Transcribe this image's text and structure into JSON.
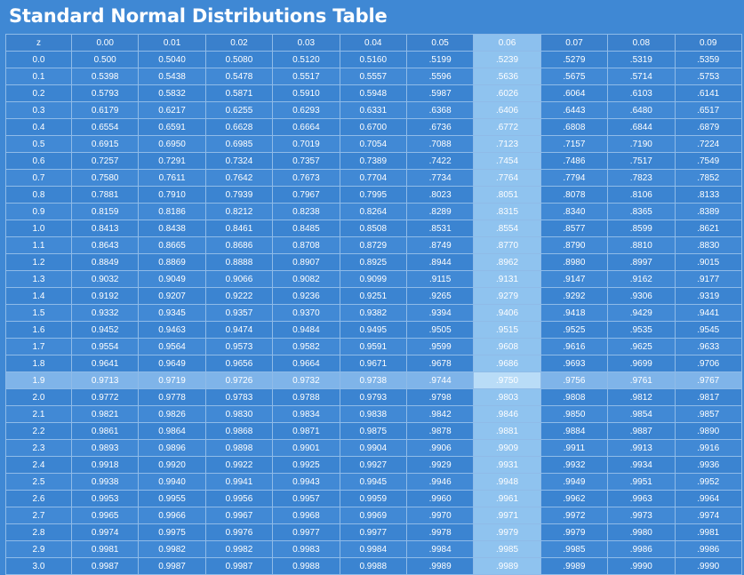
{
  "title": "Standard Normal Distributions Table",
  "highlight": {
    "row": "1.9",
    "column": "0.06"
  },
  "table": {
    "headers": [
      "z",
      "0.00",
      "0.01",
      "0.02",
      "0.03",
      "0.04",
      "0.05",
      "0.06",
      "0.07",
      "0.08",
      "0.09"
    ],
    "rows": [
      [
        "0.0",
        "0.500",
        "0.5040",
        "0.5080",
        "0.5120",
        "0.5160",
        ".5199",
        ".5239",
        ".5279",
        ".5319",
        ".5359"
      ],
      [
        "0.1",
        "0.5398",
        "0.5438",
        "0.5478",
        "0.5517",
        "0.5557",
        ".5596",
        ".5636",
        ".5675",
        ".5714",
        ".5753"
      ],
      [
        "0.2",
        "0.5793",
        "0.5832",
        "0.5871",
        "0.5910",
        "0.5948",
        ".5987",
        ".6026",
        ".6064",
        ".6103",
        ".6141"
      ],
      [
        "0.3",
        "0.6179",
        "0.6217",
        "0.6255",
        "0.6293",
        "0.6331",
        ".6368",
        ".6406",
        ".6443",
        ".6480",
        ".6517"
      ],
      [
        "0.4",
        "0.6554",
        "0.6591",
        "0.6628",
        "0.6664",
        "0.6700",
        ".6736",
        ".6772",
        ".6808",
        ".6844",
        ".6879"
      ],
      [
        "0.5",
        "0.6915",
        "0.6950",
        "0.6985",
        "0.7019",
        "0.7054",
        ".7088",
        ".7123",
        ".7157",
        ".7190",
        ".7224"
      ],
      [
        "0.6",
        "0.7257",
        "0.7291",
        "0.7324",
        "0.7357",
        "0.7389",
        ".7422",
        ".7454",
        ".7486",
        ".7517",
        ".7549"
      ],
      [
        "0.7",
        "0.7580",
        "0.7611",
        "0.7642",
        "0.7673",
        "0.7704",
        ".7734",
        ".7764",
        ".7794",
        ".7823",
        ".7852"
      ],
      [
        "0.8",
        "0.7881",
        "0.7910",
        "0.7939",
        "0.7967",
        "0.7995",
        ".8023",
        ".8051",
        ".8078",
        ".8106",
        ".8133"
      ],
      [
        "0.9",
        "0.8159",
        "0.8186",
        "0.8212",
        "0.8238",
        "0.8264",
        ".8289",
        ".8315",
        ".8340",
        ".8365",
        ".8389"
      ],
      [
        "1.0",
        "0.8413",
        "0.8438",
        "0.8461",
        "0.8485",
        "0.8508",
        ".8531",
        ".8554",
        ".8577",
        ".8599",
        ".8621"
      ],
      [
        "1.1",
        "0.8643",
        "0.8665",
        "0.8686",
        "0.8708",
        "0.8729",
        ".8749",
        ".8770",
        ".8790",
        ".8810",
        ".8830"
      ],
      [
        "1.2",
        "0.8849",
        "0.8869",
        "0.8888",
        "0.8907",
        "0.8925",
        ".8944",
        ".8962",
        ".8980",
        ".8997",
        ".9015"
      ],
      [
        "1.3",
        "0.9032",
        "0.9049",
        "0.9066",
        "0.9082",
        "0.9099",
        ".9115",
        ".9131",
        ".9147",
        ".9162",
        ".9177"
      ],
      [
        "1.4",
        "0.9192",
        "0.9207",
        "0.9222",
        "0.9236",
        "0.9251",
        ".9265",
        ".9279",
        ".9292",
        ".9306",
        ".9319"
      ],
      [
        "1.5",
        "0.9332",
        "0.9345",
        "0.9357",
        "0.9370",
        "0.9382",
        ".9394",
        ".9406",
        ".9418",
        ".9429",
        ".9441"
      ],
      [
        "1.6",
        "0.9452",
        "0.9463",
        "0.9474",
        "0.9484",
        "0.9495",
        ".9505",
        ".9515",
        ".9525",
        ".9535",
        ".9545"
      ],
      [
        "1.7",
        "0.9554",
        "0.9564",
        "0.9573",
        "0.9582",
        "0.9591",
        ".9599",
        ".9608",
        ".9616",
        ".9625",
        ".9633"
      ],
      [
        "1.8",
        "0.9641",
        "0.9649",
        "0.9656",
        "0.9664",
        "0.9671",
        ".9678",
        ".9686",
        ".9693",
        ".9699",
        ".9706"
      ],
      [
        "1.9",
        "0.9713",
        "0.9719",
        "0.9726",
        "0.9732",
        "0.9738",
        ".9744",
        ".9750",
        ".9756",
        ".9761",
        ".9767"
      ],
      [
        "2.0",
        "0.9772",
        "0.9778",
        "0.9783",
        "0.9788",
        "0.9793",
        ".9798",
        ".9803",
        ".9808",
        ".9812",
        ".9817"
      ],
      [
        "2.1",
        "0.9821",
        "0.9826",
        "0.9830",
        "0.9834",
        "0.9838",
        ".9842",
        ".9846",
        ".9850",
        ".9854",
        ".9857"
      ],
      [
        "2.2",
        "0.9861",
        "0.9864",
        "0.9868",
        "0.9871",
        "0.9875",
        ".9878",
        ".9881",
        ".9884",
        ".9887",
        ".9890"
      ],
      [
        "2.3",
        "0.9893",
        "0.9896",
        "0.9898",
        "0.9901",
        "0.9904",
        ".9906",
        ".9909",
        ".9911",
        ".9913",
        ".9916"
      ],
      [
        "2.4",
        "0.9918",
        "0.9920",
        "0.9922",
        "0.9925",
        "0.9927",
        ".9929",
        ".9931",
        ".9932",
        ".9934",
        ".9936"
      ],
      [
        "2.5",
        "0.9938",
        "0.9940",
        "0.9941",
        "0.9943",
        "0.9945",
        ".9946",
        ".9948",
        ".9949",
        ".9951",
        ".9952"
      ],
      [
        "2.6",
        "0.9953",
        "0.9955",
        "0.9956",
        "0.9957",
        "0.9959",
        ".9960",
        ".9961",
        ".9962",
        ".9963",
        ".9964"
      ],
      [
        "2.7",
        "0.9965",
        "0.9966",
        "0.9967",
        "0.9968",
        "0.9969",
        ".9970",
        ".9971",
        ".9972",
        ".9973",
        ".9974"
      ],
      [
        "2.8",
        "0.9974",
        "0.9975",
        "0.9976",
        "0.9977",
        "0.9977",
        ".9978",
        ".9979",
        ".9979",
        ".9980",
        ".9981"
      ],
      [
        "2.9",
        "0.9981",
        "0.9982",
        "0.9982",
        "0.9983",
        "0.9984",
        ".9984",
        ".9985",
        ".9985",
        ".9986",
        ".9986"
      ],
      [
        "3.0",
        "0.9987",
        "0.9987",
        "0.9987",
        "0.9988",
        "0.9988",
        ".9989",
        ".9989",
        ".9989",
        ".9990",
        ".9990"
      ]
    ]
  },
  "colors": {
    "background": "#3f88d4",
    "grid_lines": "#8fbbe8",
    "highlight_column": "#8fc3ef",
    "highlight_row": "#7fb4e9",
    "text": "#ffffff"
  }
}
